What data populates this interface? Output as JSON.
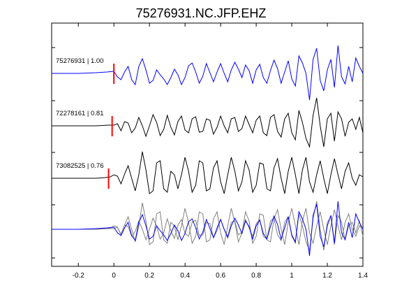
{
  "chart_data": {
    "type": "line",
    "title": "75276931.NC.JFP.EHZ",
    "xlabel": "",
    "ylabel": "",
    "xlim": [
      -0.35,
      1.4
    ],
    "xticks": [
      -0.2,
      0,
      0.2,
      0.4,
      0.6,
      0.8,
      1,
      1.2,
      1.4
    ],
    "xtick_labels": [
      "-0.2",
      "0",
      "0.2",
      "0.4",
      "0.6",
      "0.8",
      "1",
      "1.2",
      "1.4"
    ],
    "grid": false,
    "traces": [
      {
        "label": "75276931 | 1.00",
        "color": "#0000ff",
        "pick_time": 0.0,
        "pick_color": "#ff0000",
        "points": [
          [
            -0.35,
            0
          ],
          [
            -0.2,
            0
          ],
          [
            -0.1,
            0.01
          ],
          [
            -0.04,
            0.02
          ],
          [
            0,
            0.03
          ],
          [
            0.02,
            -0.05
          ],
          [
            0.04,
            -0.09
          ],
          [
            0.06,
            0.02
          ],
          [
            0.08,
            0.1
          ],
          [
            0.1,
            -0.09
          ],
          [
            0.12,
            -0.16
          ],
          [
            0.14,
            0.1
          ],
          [
            0.16,
            0.21
          ],
          [
            0.18,
            0.05
          ],
          [
            0.2,
            -0.14
          ],
          [
            0.22,
            -0.1
          ],
          [
            0.24,
            0.05
          ],
          [
            0.26,
            -0.02
          ],
          [
            0.28,
            -0.08
          ],
          [
            0.3,
            -0.16
          ],
          [
            0.32,
            -0.06
          ],
          [
            0.34,
            0.06
          ],
          [
            0.36,
            -0.02
          ],
          [
            0.38,
            -0.16
          ],
          [
            0.4,
            -0.06
          ],
          [
            0.42,
            0.11
          ],
          [
            0.44,
            0.15
          ],
          [
            0.46,
            0.02
          ],
          [
            0.48,
            -0.14
          ],
          [
            0.5,
            -0.04
          ],
          [
            0.52,
            0.14
          ],
          [
            0.54,
            0.01
          ],
          [
            0.56,
            -0.12
          ],
          [
            0.58,
            0.02
          ],
          [
            0.6,
            0.14
          ],
          [
            0.62,
            0.0
          ],
          [
            0.64,
            -0.12
          ],
          [
            0.66,
            0.05
          ],
          [
            0.68,
            0.16
          ],
          [
            0.7,
            0.06
          ],
          [
            0.72,
            -0.06
          ],
          [
            0.74,
            0.12
          ],
          [
            0.76,
            0.04
          ],
          [
            0.78,
            -0.14
          ],
          [
            0.8,
            0.05
          ],
          [
            0.82,
            0.13
          ],
          [
            0.84,
            -0.06
          ],
          [
            0.86,
            -0.14
          ],
          [
            0.88,
            0.04
          ],
          [
            0.9,
            0.19
          ],
          [
            0.92,
            0.07
          ],
          [
            0.94,
            -0.14
          ],
          [
            0.96,
            0.02
          ],
          [
            0.98,
            0.18
          ],
          [
            1.0,
            -0.08
          ],
          [
            1.02,
            -0.18
          ],
          [
            1.04,
            0.25
          ],
          [
            1.06,
            0.15
          ],
          [
            1.08,
            0.0
          ],
          [
            1.1,
            -0.38
          ],
          [
            1.12,
            0.2
          ],
          [
            1.14,
            0.36
          ],
          [
            1.16,
            -0.1
          ],
          [
            1.18,
            -0.25
          ],
          [
            1.2,
            0.05
          ],
          [
            1.22,
            0.2
          ],
          [
            1.24,
            -0.2
          ],
          [
            1.26,
            0.4
          ],
          [
            1.28,
            -0.05
          ],
          [
            1.3,
            -0.15
          ],
          [
            1.32,
            0.1
          ],
          [
            1.34,
            -0.12
          ],
          [
            1.36,
            0.22
          ],
          [
            1.38,
            0.1
          ],
          [
            1.4,
            0.0
          ]
        ]
      },
      {
        "label": "72278161 | 0.81",
        "color": "#000000",
        "pick_time": -0.01,
        "pick_color": "#ff0000",
        "points": [
          [
            -0.35,
            0
          ],
          [
            -0.2,
            0
          ],
          [
            -0.1,
            0
          ],
          [
            -0.03,
            0.01
          ],
          [
            0,
            0.01
          ],
          [
            0.02,
            0.03
          ],
          [
            0.04,
            -0.07
          ],
          [
            0.06,
            0.06
          ],
          [
            0.08,
            0.04
          ],
          [
            0.1,
            -0.1
          ],
          [
            0.12,
            -0.03
          ],
          [
            0.14,
            0.12
          ],
          [
            0.16,
            0.0
          ],
          [
            0.18,
            -0.15
          ],
          [
            0.2,
            0.0
          ],
          [
            0.22,
            0.16
          ],
          [
            0.24,
            0.05
          ],
          [
            0.26,
            -0.14
          ],
          [
            0.28,
            -0.05
          ],
          [
            0.3,
            0.15
          ],
          [
            0.32,
            -0.02
          ],
          [
            0.34,
            -0.13
          ],
          [
            0.36,
            0.06
          ],
          [
            0.38,
            0.14
          ],
          [
            0.4,
            -0.06
          ],
          [
            0.42,
            -0.1
          ],
          [
            0.44,
            0.1
          ],
          [
            0.46,
            0.13
          ],
          [
            0.48,
            -0.09
          ],
          [
            0.5,
            -0.08
          ],
          [
            0.52,
            0.1
          ],
          [
            0.54,
            0.08
          ],
          [
            0.56,
            -0.12
          ],
          [
            0.58,
            -0.02
          ],
          [
            0.6,
            0.14
          ],
          [
            0.62,
            0.0
          ],
          [
            0.64,
            -0.1
          ],
          [
            0.66,
            0.1
          ],
          [
            0.68,
            0.12
          ],
          [
            0.7,
            -0.08
          ],
          [
            0.72,
            -0.04
          ],
          [
            0.74,
            0.14
          ],
          [
            0.76,
            0.02
          ],
          [
            0.78,
            -0.1
          ],
          [
            0.8,
            0.08
          ],
          [
            0.82,
            0.14
          ],
          [
            0.84,
            -0.1
          ],
          [
            0.86,
            -0.14
          ],
          [
            0.88,
            0.12
          ],
          [
            0.9,
            0.16
          ],
          [
            0.92,
            -0.08
          ],
          [
            0.94,
            -0.16
          ],
          [
            0.96,
            0.1
          ],
          [
            0.98,
            0.18
          ],
          [
            1.0,
            -0.1
          ],
          [
            1.02,
            -0.2
          ],
          [
            1.04,
            0.22
          ],
          [
            1.06,
            0.05
          ],
          [
            1.08,
            -0.18
          ],
          [
            1.1,
            -0.3
          ],
          [
            1.12,
            0.15
          ],
          [
            1.14,
            0.4
          ],
          [
            1.16,
            0.0
          ],
          [
            1.18,
            -0.3
          ],
          [
            1.2,
            0.1
          ],
          [
            1.22,
            0.18
          ],
          [
            1.24,
            -0.22
          ],
          [
            1.26,
            0.2
          ],
          [
            1.28,
            0.1
          ],
          [
            1.3,
            -0.15
          ],
          [
            1.32,
            0.05
          ],
          [
            1.34,
            0.1
          ],
          [
            1.36,
            -0.05
          ],
          [
            1.38,
            0.12
          ],
          [
            1.4,
            -0.1
          ]
        ]
      },
      {
        "label": "73082525 | 0.76",
        "color": "#000000",
        "pick_time": -0.03,
        "pick_color": "#ff0000",
        "points": [
          [
            -0.35,
            0
          ],
          [
            -0.2,
            0
          ],
          [
            -0.1,
            0
          ],
          [
            -0.05,
            0.01
          ],
          [
            -0.02,
            0.02
          ],
          [
            0,
            0.05
          ],
          [
            0.02,
            0.03
          ],
          [
            0.04,
            -0.08
          ],
          [
            0.06,
            0.06
          ],
          [
            0.08,
            0.18
          ],
          [
            0.1,
            0.0
          ],
          [
            0.12,
            -0.18
          ],
          [
            0.14,
            0.05
          ],
          [
            0.16,
            0.38
          ],
          [
            0.18,
            0.12
          ],
          [
            0.2,
            -0.22
          ],
          [
            0.22,
            -0.18
          ],
          [
            0.24,
            0.22
          ],
          [
            0.26,
            0.25
          ],
          [
            0.28,
            -0.15
          ],
          [
            0.3,
            -0.2
          ],
          [
            0.32,
            0.1
          ],
          [
            0.34,
            0.05
          ],
          [
            0.36,
            -0.15
          ],
          [
            0.38,
            0.05
          ],
          [
            0.4,
            0.3
          ],
          [
            0.42,
            0.1
          ],
          [
            0.44,
            -0.2
          ],
          [
            0.46,
            -0.1
          ],
          [
            0.48,
            0.25
          ],
          [
            0.5,
            0.22
          ],
          [
            0.52,
            -0.18
          ],
          [
            0.54,
            -0.15
          ],
          [
            0.56,
            0.15
          ],
          [
            0.58,
            0.25
          ],
          [
            0.6,
            -0.05
          ],
          [
            0.62,
            -0.22
          ],
          [
            0.64,
            0.05
          ],
          [
            0.66,
            0.3
          ],
          [
            0.68,
            0.1
          ],
          [
            0.7,
            -0.18
          ],
          [
            0.72,
            -0.05
          ],
          [
            0.74,
            0.25
          ],
          [
            0.76,
            0.12
          ],
          [
            0.78,
            -0.2
          ],
          [
            0.8,
            -0.1
          ],
          [
            0.82,
            0.22
          ],
          [
            0.84,
            0.2
          ],
          [
            0.86,
            -0.15
          ],
          [
            0.88,
            -0.18
          ],
          [
            0.9,
            0.15
          ],
          [
            0.92,
            0.28
          ],
          [
            0.94,
            0.0
          ],
          [
            0.96,
            -0.22
          ],
          [
            0.98,
            0.1
          ],
          [
            1.0,
            0.3
          ],
          [
            1.02,
            0.05
          ],
          [
            1.04,
            -0.22
          ],
          [
            1.06,
            0.12
          ],
          [
            1.08,
            0.3
          ],
          [
            1.1,
            -0.05
          ],
          [
            1.12,
            -0.2
          ],
          [
            1.14,
            0.05
          ],
          [
            1.16,
            0.25
          ],
          [
            1.18,
            0.0
          ],
          [
            1.2,
            -0.22
          ],
          [
            1.22,
            0.05
          ],
          [
            1.24,
            0.28
          ],
          [
            1.26,
            0.05
          ],
          [
            1.28,
            -0.15
          ],
          [
            1.3,
            0.1
          ],
          [
            1.32,
            0.22
          ],
          [
            1.34,
            0.0
          ],
          [
            1.36,
            -0.1
          ],
          [
            1.38,
            0.05
          ],
          [
            1.4,
            0.02
          ]
        ]
      }
    ]
  }
}
